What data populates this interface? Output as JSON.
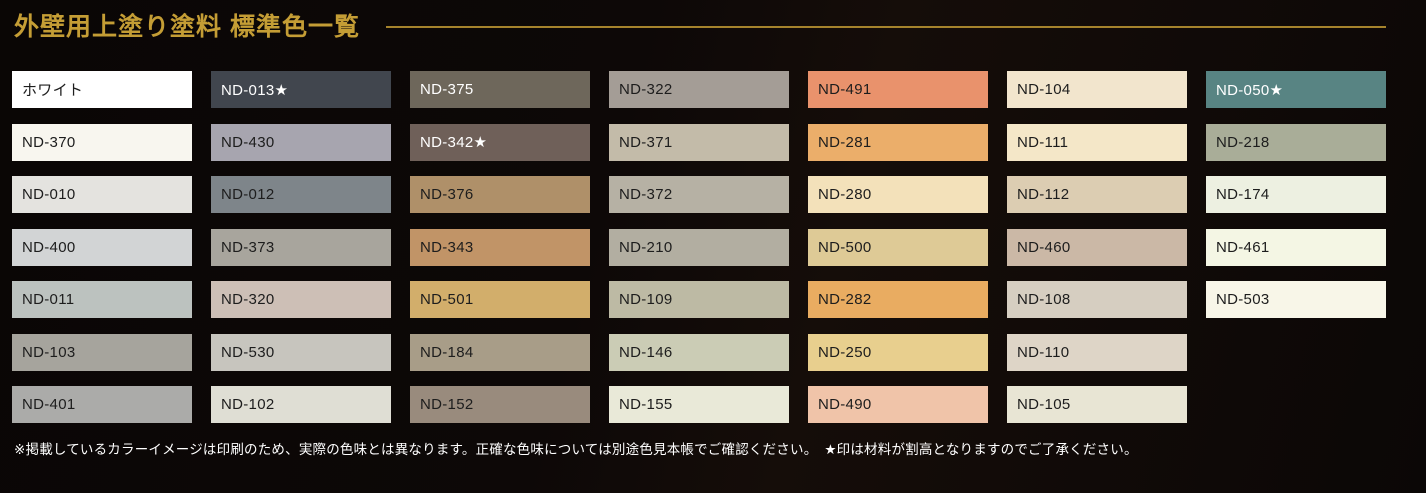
{
  "page": {
    "title": "外壁用上塗り塗料 標準色一覧",
    "accent_color": "#c49d35",
    "rule_color": "#a5832c",
    "background_color": "#0d0807",
    "footnote": "※掲載しているカラーイメージは印刷のため、実際の色味とは異なります。正確な色味については別途色見本帳でご確認ください。　★印は材料が割高となりますのでご了承ください。"
  },
  "swatches": [
    {
      "label": "ホワイト",
      "color": "#ffffff",
      "text": "dark",
      "row": 1,
      "col": 1
    },
    {
      "label": "ND-013★",
      "color": "#41464e",
      "text": "light",
      "row": 1,
      "col": 2
    },
    {
      "label": "ND-375",
      "color": "#6e675b",
      "text": "light",
      "row": 1,
      "col": 3
    },
    {
      "label": "ND-322",
      "color": "#a49d96",
      "text": "dark",
      "row": 1,
      "col": 4
    },
    {
      "label": "ND-491",
      "color": "#e9926c",
      "text": "dark",
      "row": 1,
      "col": 5
    },
    {
      "label": "ND-104",
      "color": "#f2e5cd",
      "text": "dark",
      "row": 1,
      "col": 6
    },
    {
      "label": "ND-050★",
      "color": "#588483",
      "text": "light",
      "row": 1,
      "col": 7
    },
    {
      "label": "ND-370",
      "color": "#f8f6ef",
      "text": "dark",
      "row": 2,
      "col": 1
    },
    {
      "label": "ND-430",
      "color": "#a7a5af",
      "text": "dark",
      "row": 2,
      "col": 2
    },
    {
      "label": "ND-342★",
      "color": "#6f6059",
      "text": "light",
      "row": 2,
      "col": 3
    },
    {
      "label": "ND-371",
      "color": "#c3bba9",
      "text": "dark",
      "row": 2,
      "col": 4
    },
    {
      "label": "ND-281",
      "color": "#ebae6a",
      "text": "dark",
      "row": 2,
      "col": 5
    },
    {
      "label": "ND-111",
      "color": "#f4e7c8",
      "text": "dark",
      "row": 2,
      "col": 6
    },
    {
      "label": "ND-218",
      "color": "#a9ad98",
      "text": "dark",
      "row": 2,
      "col": 7
    },
    {
      "label": "ND-010",
      "color": "#e4e3df",
      "text": "dark",
      "row": 3,
      "col": 1
    },
    {
      "label": "ND-012",
      "color": "#7e858a",
      "text": "dark",
      "row": 3,
      "col": 2
    },
    {
      "label": "ND-376",
      "color": "#af9069",
      "text": "dark",
      "row": 3,
      "col": 3
    },
    {
      "label": "ND-372",
      "color": "#b6b1a4",
      "text": "dark",
      "row": 3,
      "col": 4
    },
    {
      "label": "ND-280",
      "color": "#f3e1ba",
      "text": "dark",
      "row": 3,
      "col": 5
    },
    {
      "label": "ND-112",
      "color": "#dccdb2",
      "text": "dark",
      "row": 3,
      "col": 6
    },
    {
      "label": "ND-174",
      "color": "#edf0e1",
      "text": "dark",
      "row": 3,
      "col": 7
    },
    {
      "label": "ND-400",
      "color": "#d2d4d5",
      "text": "dark",
      "row": 4,
      "col": 1
    },
    {
      "label": "ND-373",
      "color": "#a8a59d",
      "text": "dark",
      "row": 4,
      "col": 2
    },
    {
      "label": "ND-343",
      "color": "#c19467",
      "text": "dark",
      "row": 4,
      "col": 3
    },
    {
      "label": "ND-210",
      "color": "#b2aea1",
      "text": "dark",
      "row": 4,
      "col": 4
    },
    {
      "label": "ND-500",
      "color": "#deca96",
      "text": "dark",
      "row": 4,
      "col": 5
    },
    {
      "label": "ND-460",
      "color": "#cbb8a6",
      "text": "dark",
      "row": 4,
      "col": 6
    },
    {
      "label": "ND-461",
      "color": "#f4f6e4",
      "text": "dark",
      "row": 4,
      "col": 7
    },
    {
      "label": "ND-011",
      "color": "#bcc2bf",
      "text": "dark",
      "row": 5,
      "col": 1
    },
    {
      "label": "ND-320",
      "color": "#cdbfb6",
      "text": "dark",
      "row": 5,
      "col": 2
    },
    {
      "label": "ND-501",
      "color": "#d2ae6b",
      "text": "dark",
      "row": 5,
      "col": 3
    },
    {
      "label": "ND-109",
      "color": "#bdbaa4",
      "text": "dark",
      "row": 5,
      "col": 4
    },
    {
      "label": "ND-282",
      "color": "#e9ac61",
      "text": "dark",
      "row": 5,
      "col": 5
    },
    {
      "label": "ND-108",
      "color": "#d6cec1",
      "text": "dark",
      "row": 5,
      "col": 6
    },
    {
      "label": "ND-503",
      "color": "#f8f6e8",
      "text": "dark",
      "row": 5,
      "col": 7
    },
    {
      "label": "ND-103",
      "color": "#a6a49d",
      "text": "dark",
      "row": 6,
      "col": 1
    },
    {
      "label": "ND-530",
      "color": "#c7c5be",
      "text": "dark",
      "row": 6,
      "col": 2
    },
    {
      "label": "ND-184",
      "color": "#a89d88",
      "text": "dark",
      "row": 6,
      "col": 3
    },
    {
      "label": "ND-146",
      "color": "#cbccb5",
      "text": "dark",
      "row": 6,
      "col": 4
    },
    {
      "label": "ND-250",
      "color": "#e8cf8e",
      "text": "dark",
      "row": 6,
      "col": 5
    },
    {
      "label": "ND-110",
      "color": "#ded5c7",
      "text": "dark",
      "row": 6,
      "col": 6
    },
    {
      "label": "ND-401",
      "color": "#ababa9",
      "text": "dark",
      "row": 7,
      "col": 1
    },
    {
      "label": "ND-102",
      "color": "#dfded4",
      "text": "dark",
      "row": 7,
      "col": 2
    },
    {
      "label": "ND-152",
      "color": "#998b7d",
      "text": "dark",
      "row": 7,
      "col": 3
    },
    {
      "label": "ND-155",
      "color": "#e9e9d8",
      "text": "dark",
      "row": 7,
      "col": 4
    },
    {
      "label": "ND-490",
      "color": "#f0c4a9",
      "text": "dark",
      "row": 7,
      "col": 5
    },
    {
      "label": "ND-105",
      "color": "#e8e5d4",
      "text": "dark",
      "row": 7,
      "col": 6
    }
  ]
}
